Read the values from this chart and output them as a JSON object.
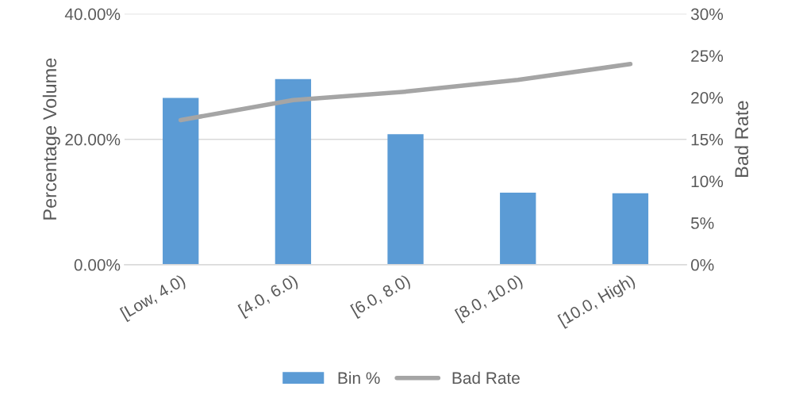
{
  "chart_data": {
    "type": "bar",
    "ylabel": "Percentage Volume",
    "y2label": "Bad Rate",
    "categories": [
      "[Low, 4.0)",
      "[4.0, 6.0)",
      "[6.0, 8.0)",
      "[8.0, 10.0)",
      "[10.0, High)"
    ],
    "series": [
      {
        "name": "Bin %",
        "color": "#5b9bd5",
        "values": [
          26.6,
          29.6,
          20.8,
          11.5,
          11.4
        ]
      },
      {
        "name": "Bad Rate",
        "type": "line",
        "axis": "y2",
        "color": "#a5a5a5",
        "values": [
          17.3,
          19.7,
          20.7,
          22.1,
          24.0
        ]
      }
    ],
    "ylim": [
      0,
      40
    ],
    "yticks": [
      {
        "value": 0,
        "label": "0.00%"
      },
      {
        "value": 20,
        "label": "20.00%"
      },
      {
        "value": 40,
        "label": "40.00%"
      }
    ],
    "y2lim": [
      0,
      30
    ],
    "y2ticks": [
      {
        "value": 0,
        "label": "0%"
      },
      {
        "value": 5,
        "label": "5%"
      },
      {
        "value": 10,
        "label": "10%"
      },
      {
        "value": 15,
        "label": "15%"
      },
      {
        "value": 20,
        "label": "20%"
      },
      {
        "value": 25,
        "label": "25%"
      },
      {
        "value": 30,
        "label": "30%"
      }
    ],
    "grid": "y",
    "legend": "bottom",
    "marker": "none",
    "line_style": "solid"
  }
}
